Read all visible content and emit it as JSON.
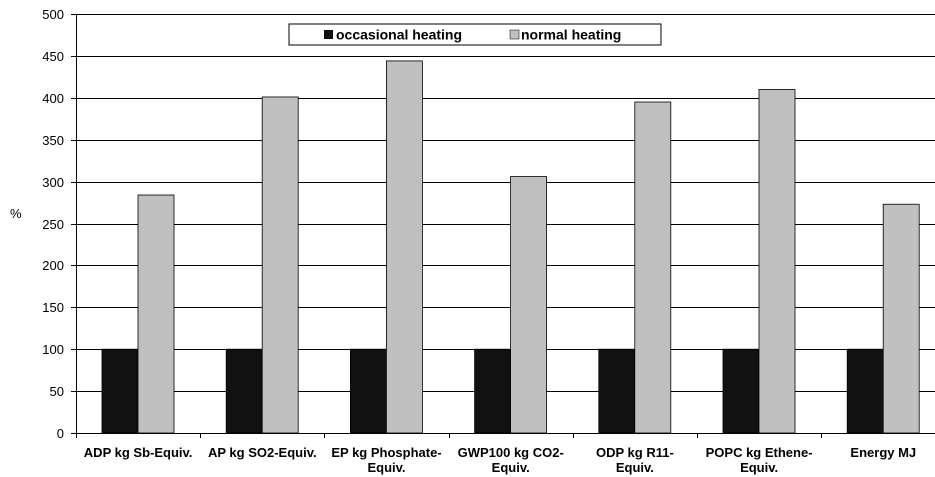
{
  "chart_data": {
    "type": "bar",
    "title": "",
    "xlabel": "",
    "ylabel": "%",
    "ylim": [
      0,
      500
    ],
    "yticks": [
      0,
      50,
      100,
      150,
      200,
      250,
      300,
      350,
      400,
      450,
      500
    ],
    "grid": true,
    "legend_position": "top-center",
    "categories": [
      [
        "ADP kg Sb-Equiv."
      ],
      [
        "AP kg SO2-Equiv."
      ],
      [
        "EP kg Phosphate-",
        "Equiv."
      ],
      [
        "GWP100 kg CO2-",
        "Equiv."
      ],
      [
        "ODP kg R11-",
        "Equiv."
      ],
      [
        "POPC kg Ethene-",
        "Equiv."
      ],
      [
        "Energy MJ"
      ]
    ],
    "series": [
      {
        "name": "occasional heating",
        "color": "#111111",
        "values": [
          100,
          100,
          100,
          100,
          100,
          100,
          100
        ]
      },
      {
        "name": "normal heating",
        "color": "#c0c0c0",
        "values": [
          284,
          401,
          444,
          306,
          395,
          410,
          273
        ]
      }
    ]
  }
}
